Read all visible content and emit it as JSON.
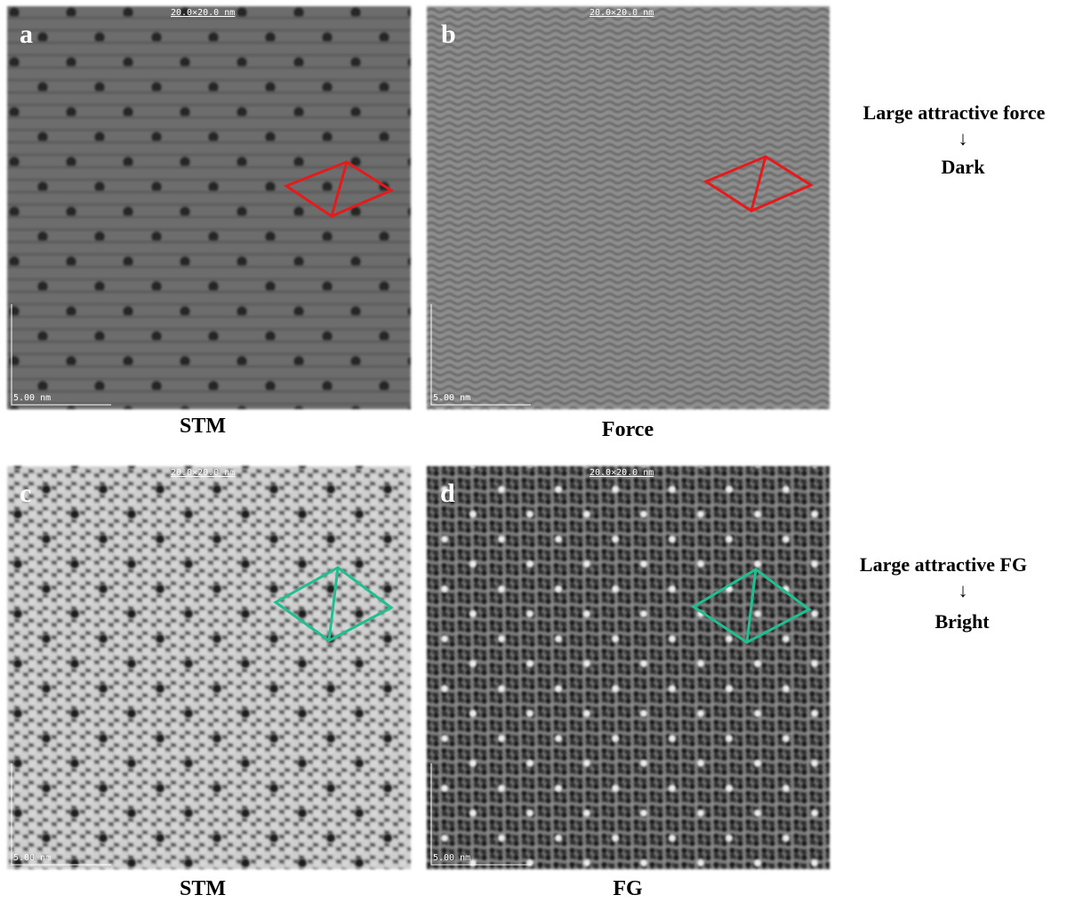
{
  "panels": [
    {
      "label": "a",
      "scan_size": "20.0×20.0 nm",
      "scale_bar": "5.00 nm",
      "caption": "STM"
    },
    {
      "label": "b",
      "scan_size": "20.0×20.0 nm",
      "scale_bar": "5.00 nm",
      "caption": "Force"
    },
    {
      "label": "c",
      "scan_size": "20.0×20.0 nm",
      "scale_bar": "5.00 nm",
      "caption": "STM"
    },
    {
      "label": "d",
      "scan_size": "20.0×20.0 nm",
      "scale_bar": "5.00 nm",
      "caption": "FG"
    }
  ],
  "annotations": [
    {
      "line1": "Large attractive force",
      "arrow": "↓",
      "line2": "Dark"
    },
    {
      "line1": "Large attractive FG",
      "arrow": "↓",
      "line2": "Bright"
    }
  ]
}
